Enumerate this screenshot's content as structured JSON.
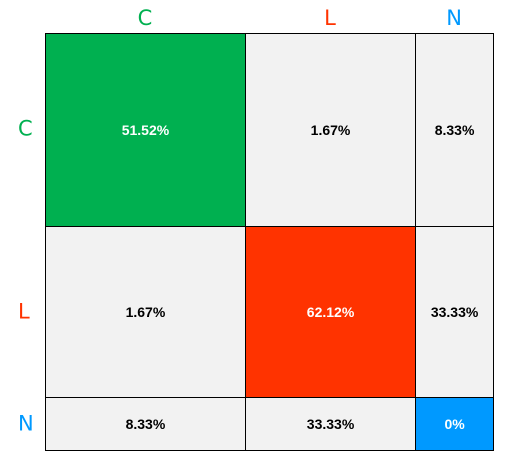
{
  "chart_data": {
    "type": "heatmap",
    "columns": [
      {
        "label": "C",
        "color": "#00B050"
      },
      {
        "label": "L",
        "color": "#FF3300"
      },
      {
        "label": "N",
        "color": "#0099FF"
      }
    ],
    "rows": [
      {
        "label": "C",
        "color": "#00B050"
      },
      {
        "label": "L",
        "color": "#FF3300"
      },
      {
        "label": "N",
        "color": "#0099FF"
      }
    ],
    "column_weights": [
      0.4462,
      0.3801,
      0.1737
    ],
    "row_weights": [
      0.4627,
      0.4106,
      0.1267
    ],
    "cells": [
      [
        {
          "text": "51.52%",
          "value": 51.52,
          "fill": "#00B050"
        },
        {
          "text": "1.67%",
          "value": 1.67,
          "fill": "#F2F2F2"
        },
        {
          "text": "8.33%",
          "value": 8.33,
          "fill": "#F2F2F2"
        }
      ],
      [
        {
          "text": "1.67%",
          "value": 1.67,
          "fill": "#F2F2F2"
        },
        {
          "text": "62.12%",
          "value": 62.12,
          "fill": "#FF3300"
        },
        {
          "text": "33.33%",
          "value": 33.33,
          "fill": "#F2F2F2"
        }
      ],
      [
        {
          "text": "8.33%",
          "value": 8.33,
          "fill": "#F2F2F2"
        },
        {
          "text": "33.33%",
          "value": 33.33,
          "fill": "#F2F2F2"
        },
        {
          "text": "0%",
          "value": 0,
          "fill": "#0099FF"
        }
      ]
    ]
  }
}
